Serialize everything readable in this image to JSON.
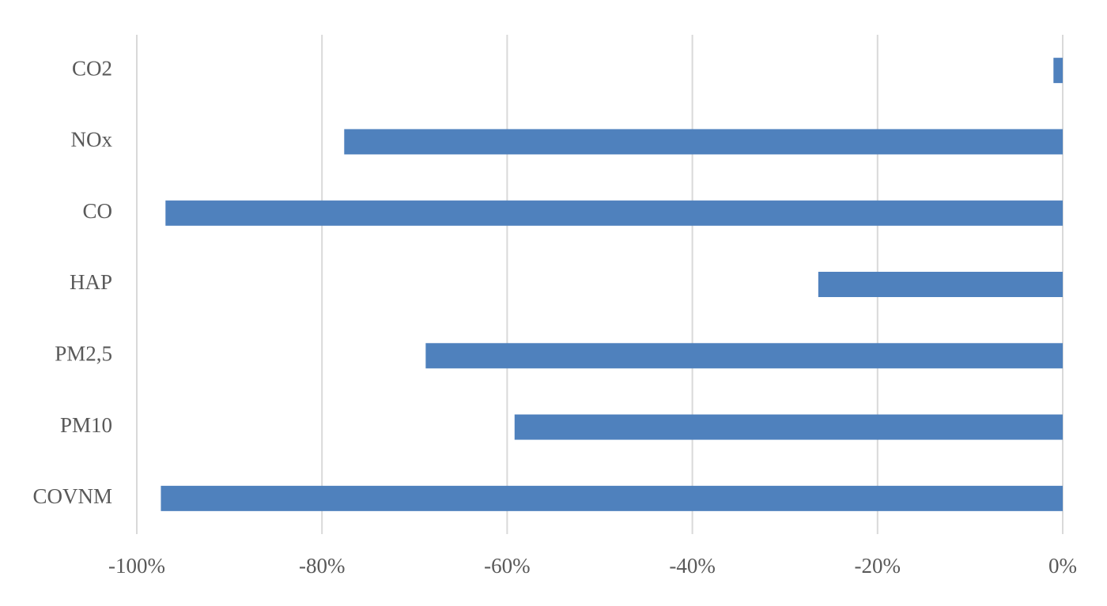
{
  "chart_data": {
    "type": "barh",
    "categories": [
      "CO2",
      "NOx",
      "CO",
      "HAP",
      "PM2,5",
      "PM10",
      "COVNM"
    ],
    "values": [
      -1.0,
      -77.6,
      -96.9,
      -26.4,
      -68.8,
      -59.2,
      -97.4
    ],
    "color": "#4f81bd",
    "xlim": [
      -100,
      0
    ],
    "xticks": [
      {
        "value": -100,
        "label": "-100%"
      },
      {
        "value": -80,
        "label": "-80%"
      },
      {
        "value": -60,
        "label": "-60%"
      },
      {
        "value": -40,
        "label": "-40%"
      },
      {
        "value": -20,
        "label": "-20%"
      },
      {
        "value": 0,
        "label": "0%"
      }
    ],
    "grid": true
  }
}
